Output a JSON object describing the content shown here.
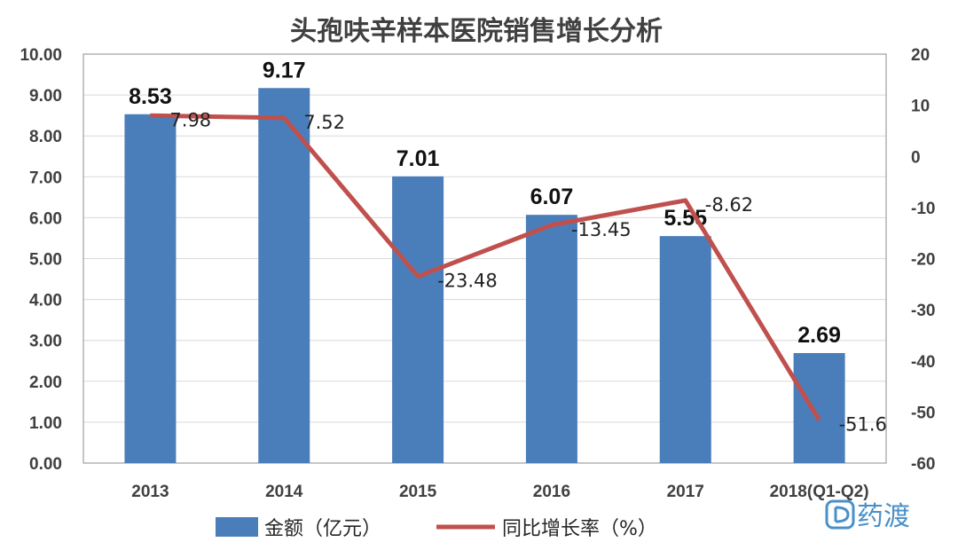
{
  "chart_data": {
    "type": "bar+line",
    "title": "头孢呋辛样本医院销售增长分析",
    "categories": [
      "2013",
      "2014",
      "2015",
      "2016",
      "2017",
      "2018(Q1-Q2)"
    ],
    "bar_series": {
      "name": "金额（亿元）",
      "color": "#4a7ebb",
      "values": [
        8.53,
        9.17,
        7.01,
        6.07,
        5.55,
        2.69
      ],
      "labels": [
        "8.53",
        "9.17",
        "7.01",
        "6.07",
        "5.55",
        "2.69"
      ]
    },
    "line_series": {
      "name": "同比增长率（%）",
      "color": "#c0504d",
      "values": [
        7.98,
        7.52,
        -23.48,
        -13.45,
        -8.62,
        -51.6
      ],
      "labels": [
        "7.98",
        "7.52",
        "-23.48",
        "-13.45",
        "-8.62",
        "-51.6"
      ]
    },
    "y_left": {
      "ylim": [
        0,
        10
      ],
      "ticks": [
        "0.00",
        "1.00",
        "2.00",
        "3.00",
        "4.00",
        "5.00",
        "6.00",
        "7.00",
        "8.00",
        "9.00",
        "10.00"
      ]
    },
    "y_right": {
      "ylim": [
        -60,
        20
      ],
      "ticks": [
        "-60",
        "-50",
        "-40",
        "-30",
        "-20",
        "-10",
        "0",
        "10",
        "20"
      ]
    },
    "grid": true,
    "legend_position": "bottom"
  },
  "watermark": {
    "text": "药渡",
    "icon": "yaodu-logo-icon"
  }
}
